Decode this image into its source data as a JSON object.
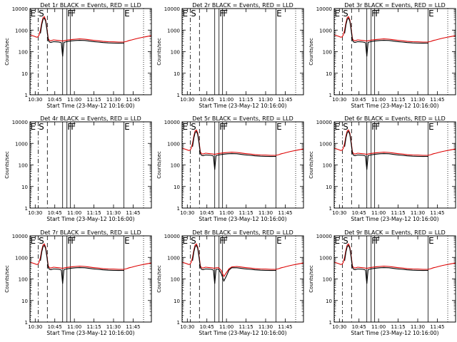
{
  "colors": {
    "events": "#000000",
    "lld": "#dd0000",
    "axes": "#000000"
  },
  "chart_data": [
    {
      "panel": 1,
      "title": "Det 1r BLACK = Events, RED = LLD",
      "has_data": true,
      "variant": "a"
    },
    {
      "panel": 2,
      "title": "Det 2r BLACK = Events, RED = LLD",
      "has_data": false,
      "variant": "a"
    },
    {
      "panel": 3,
      "title": "Det 3r BLACK = Events, RED = LLD",
      "has_data": true,
      "variant": "a"
    },
    {
      "panel": 4,
      "title": "Det 4r BLACK = Events, RED = LLD",
      "has_data": false,
      "variant": "a"
    },
    {
      "panel": 5,
      "title": "Det 5r BLACK = Events, RED = LLD",
      "has_data": true,
      "variant": "a"
    },
    {
      "panel": 6,
      "title": "Det 6r BLACK = Events, RED = LLD",
      "has_data": true,
      "variant": "a"
    },
    {
      "panel": 7,
      "title": "Det 7r BLACK = Events, RED = LLD",
      "has_data": true,
      "variant": "a"
    },
    {
      "panel": 8,
      "title": "Det 8r BLACK = Events, RED = LLD",
      "has_data": true,
      "variant": "b"
    },
    {
      "panel": 9,
      "title": "Det 9r BLACK = Events, RED = LLD",
      "has_data": true,
      "variant": "a"
    }
  ],
  "shared": {
    "type": "line",
    "xlabel": "Start Time (23-May-12 10:16:00)",
    "ylabel": "Counts/sec",
    "yscale": "log",
    "ylim": [
      1,
      10000
    ],
    "xlim_minutes": [
      10.0,
      103.0
    ],
    "xticks": [
      {
        "label": "10:30",
        "x": 14
      },
      {
        "label": "10:45",
        "x": 29
      },
      {
        "label": "11:00",
        "x": 44
      },
      {
        "label": "11:15",
        "x": 59
      },
      {
        "label": "11:30",
        "x": 74
      },
      {
        "label": "11:45",
        "x": 89
      }
    ],
    "yticks": [
      {
        "label": "1",
        "v": 1
      },
      {
        "label": "10",
        "v": 10
      },
      {
        "label": "100",
        "v": 100
      },
      {
        "label": "1000",
        "v": 1000
      },
      {
        "label": "10000",
        "v": 10000
      }
    ],
    "marker_lines": [
      {
        "label": "E",
        "x": 10.3,
        "style": "dotted"
      },
      {
        "label": "",
        "x": 16.3,
        "style": "dashdot"
      },
      {
        "label": "S",
        "x": 16.6,
        "style": "none"
      },
      {
        "label": "",
        "x": 23.3,
        "style": "dashed"
      },
      {
        "label": "",
        "x": 35.0,
        "style": "solid"
      },
      {
        "label": "",
        "x": 38.3,
        "style": "solid"
      },
      {
        "label": "F",
        "x": 38.6,
        "style": "none"
      },
      {
        "label": "",
        "x": 41.0,
        "style": "solid"
      },
      {
        "label": "F",
        "x": 41.3,
        "style": "none"
      },
      {
        "label": "",
        "x": 82.0,
        "style": "solid"
      },
      {
        "label": "E",
        "x": 82.3,
        "style": "none"
      },
      {
        "label": "",
        "x": 97.0,
        "style": "dotted"
      }
    ],
    "series": [
      {
        "name": "LLD",
        "color": "#dd0000",
        "x": [
          10,
          12,
          14,
          15,
          16,
          17,
          18,
          19,
          20,
          21,
          22,
          23,
          24,
          25,
          26,
          28,
          30,
          32,
          35,
          36,
          38,
          41,
          43,
          45,
          48,
          52,
          55,
          58,
          62,
          66,
          70,
          74,
          78,
          82,
          84,
          86,
          88,
          90,
          93,
          96,
          99,
          103
        ],
        "y": [
          600,
          550,
          500,
          470,
          480,
          600,
          1000,
          2200,
          3800,
          4200,
          3000,
          1200,
          400,
          330,
          320,
          350,
          340,
          330,
          310,
          320,
          340,
          360,
          370,
          380,
          390,
          380,
          360,
          340,
          320,
          300,
          290,
          285,
          280,
          280,
          300,
          330,
          350,
          380,
          420,
          460,
          500,
          550
        ]
      },
      {
        "name": "Events",
        "color": "#000000",
        "x": [
          18,
          19,
          20,
          21,
          22,
          23,
          24,
          25,
          26,
          28,
          30,
          32,
          34,
          35,
          36,
          38,
          41,
          43,
          45,
          48,
          52,
          55,
          58,
          62,
          66,
          70,
          74,
          78,
          82
        ],
        "y": [
          700,
          1800,
          3200,
          3600,
          2600,
          1000,
          330,
          280,
          270,
          290,
          285,
          280,
          260,
          60,
          270,
          290,
          310,
          320,
          330,
          335,
          330,
          310,
          295,
          280,
          265,
          255,
          250,
          248,
          250
        ]
      }
    ],
    "variant_b_dip": {
      "x": [
        36,
        38,
        40,
        42,
        44,
        46,
        48
      ],
      "y_lld": [
        330,
        330,
        250,
        130,
        200,
        300,
        360
      ],
      "y_events": [
        280,
        280,
        180,
        80,
        140,
        260,
        330
      ]
    }
  }
}
